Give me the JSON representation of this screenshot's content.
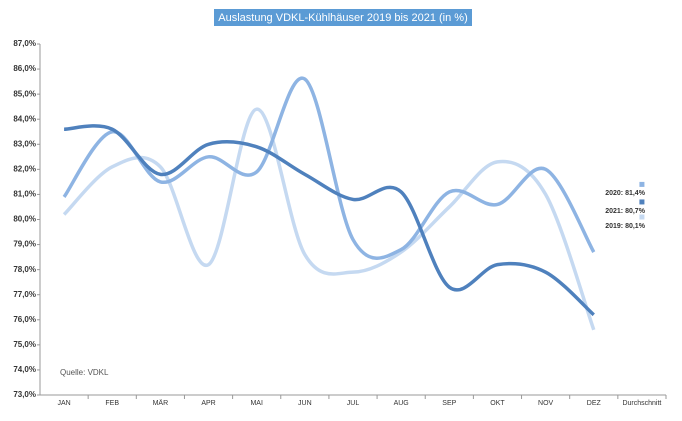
{
  "chart_data": {
    "type": "line",
    "title": "Auslastung VDKL-Kühlhäuser 2019 bis 2021 (in %)",
    "annotation": "Quelle: VDKL",
    "categories": [
      "JAN",
      "FEB",
      "MÄR",
      "APR",
      "MAI",
      "JUN",
      "JUL",
      "AUG",
      "SEP",
      "OKT",
      "NOV",
      "DEZ",
      "Durchschnitt"
    ],
    "series": [
      {
        "name": "2019",
        "color": "#c5d9f1",
        "values": [
          80.2,
          82.1,
          82.1,
          78.2,
          84.4,
          78.6,
          77.9,
          78.7,
          80.5,
          82.3,
          81.0,
          75.6,
          80.1
        ],
        "value_labels": [
          null,
          null,
          null,
          null,
          null,
          null,
          null,
          null,
          null,
          null,
          null,
          null,
          "2019: 80,1%"
        ]
      },
      {
        "name": "2020",
        "color": "#8eb4e3",
        "values": [
          80.9,
          83.5,
          81.5,
          82.5,
          81.9,
          85.6,
          79.2,
          78.8,
          81.1,
          80.6,
          82.0,
          78.7,
          81.4
        ],
        "value_labels": [
          null,
          null,
          null,
          null,
          null,
          null,
          null,
          null,
          null,
          null,
          null,
          null,
          "2020: 81,4%"
        ]
      },
      {
        "name": "2021",
        "color": "#4f81bd",
        "values": [
          83.6,
          83.6,
          81.8,
          83.0,
          82.9,
          81.8,
          80.8,
          81.1,
          77.3,
          78.2,
          77.9,
          76.2,
          80.7
        ],
        "value_labels": [
          null,
          null,
          null,
          null,
          null,
          null,
          null,
          null,
          null,
          null,
          null,
          null,
          "2021: 80,7%"
        ]
      }
    ],
    "ylim": [
      73,
      87
    ],
    "yticks": [
      {
        "value": 73,
        "label": "73,0%"
      },
      {
        "value": 74,
        "label": "74,0%"
      },
      {
        "value": 75,
        "label": "75,0%"
      },
      {
        "value": 76,
        "label": "76,0%"
      },
      {
        "value": 77,
        "label": "77,0%"
      },
      {
        "value": 78,
        "label": "78,0%"
      },
      {
        "value": 79,
        "label": "79,0%"
      },
      {
        "value": 80,
        "label": "80,0%"
      },
      {
        "value": 81,
        "label": "81,0%"
      },
      {
        "value": 82,
        "label": "82,0%"
      },
      {
        "value": 83,
        "label": "83,0%"
      },
      {
        "value": 84,
        "label": "84,0%"
      },
      {
        "value": 85,
        "label": "85,0%"
      },
      {
        "value": 86,
        "label": "86,0%"
      },
      {
        "value": 87,
        "label": "87,0%"
      }
    ],
    "grid": false
  }
}
